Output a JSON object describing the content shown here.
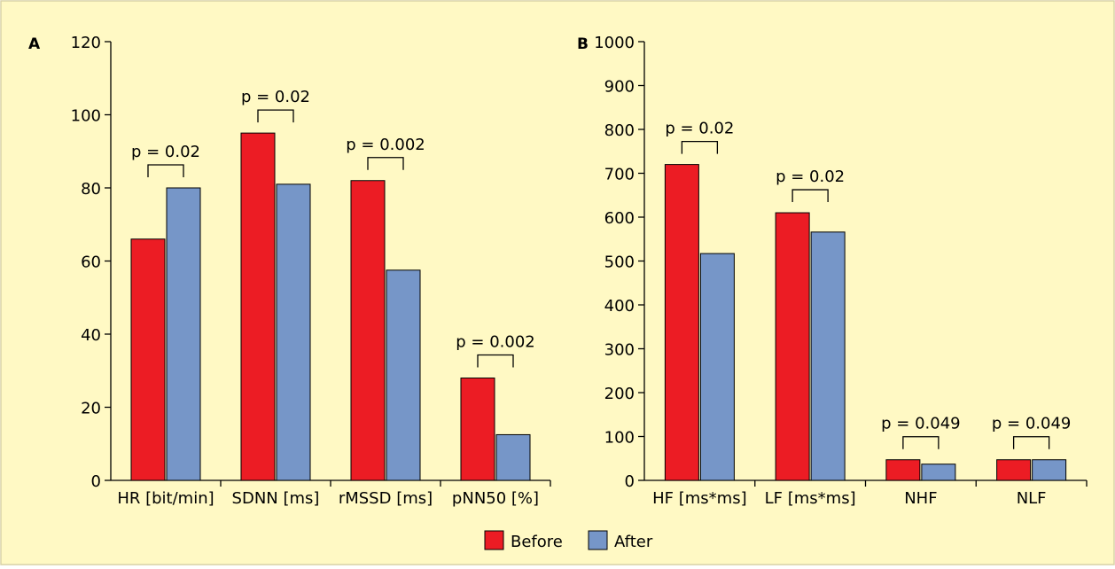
{
  "colors": {
    "background": "#fff9c4",
    "border": "#d9d2a6",
    "before": "#ec1c24",
    "after": "#7696c8",
    "axis": "#000000"
  },
  "legend": {
    "placement": "bottom-center",
    "before_label": "Before",
    "after_label": "After"
  },
  "chart_data": [
    {
      "type": "bar",
      "panel_label": "A",
      "categories": [
        "HR [bit/min]",
        "SDNN [ms]",
        "rMSSD [ms]",
        "pNN50 [%]"
      ],
      "series": [
        {
          "name": "Before",
          "values": [
            66,
            95,
            82,
            28
          ]
        },
        {
          "name": "After",
          "values": [
            80,
            81,
            57.5,
            12.5
          ]
        }
      ],
      "annotations": [
        "p = 0.02",
        "p = 0.02",
        "p = 0.002",
        "p = 0.002"
      ],
      "ylim": [
        0,
        120
      ],
      "yticks": [
        0,
        20,
        40,
        60,
        80,
        100,
        120
      ],
      "grid": false
    },
    {
      "type": "bar",
      "panel_label": "B",
      "categories": [
        "HF [ms*ms]",
        "LF [ms*ms]",
        "NHF",
        "NLF"
      ],
      "series": [
        {
          "name": "Before",
          "values": [
            720,
            610,
            47,
            47
          ]
        },
        {
          "name": "After",
          "values": [
            517,
            566,
            37,
            47
          ]
        }
      ],
      "annotations": [
        "p = 0.02",
        "p = 0.02",
        "p = 0.049",
        "p = 0.049"
      ],
      "ylim": [
        0,
        1000
      ],
      "yticks": [
        0,
        100,
        200,
        300,
        400,
        500,
        600,
        700,
        800,
        900,
        1000
      ],
      "grid": false
    }
  ]
}
